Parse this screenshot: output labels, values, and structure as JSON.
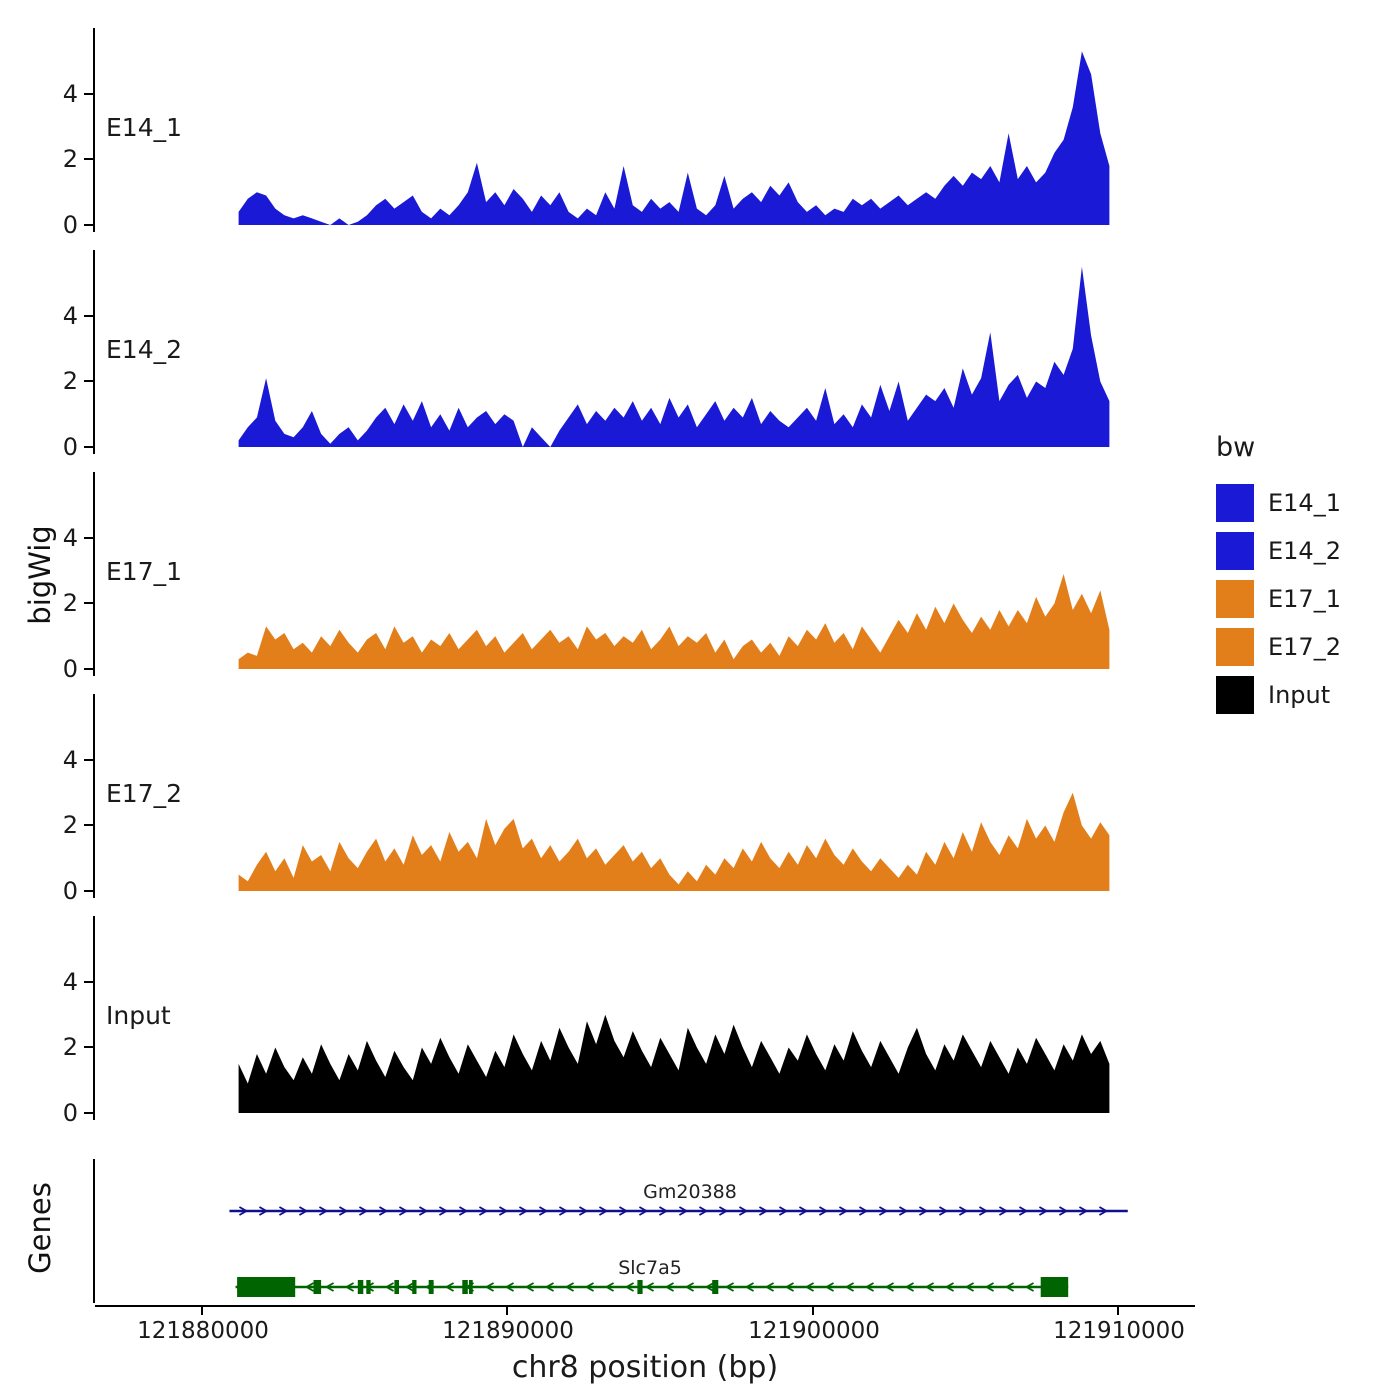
{
  "labels": {
    "y_axis": "bigWig",
    "genes_axis": "Genes",
    "x_axis": "chr8 position (bp)"
  },
  "legend": {
    "title": "bw"
  },
  "chart_data": {
    "type": "area",
    "title": "",
    "xlabel": "chr8 position (bp)",
    "ylabel": "bigWig",
    "x_domain": [
      121876500,
      121912500
    ],
    "x_ticks": [
      121880000,
      121890000,
      121900000,
      121910000
    ],
    "x_tick_labels": [
      "121880000",
      "121890000",
      "121900000",
      "121910000"
    ],
    "y_ticks": [
      0,
      2,
      4
    ],
    "y_tick_labels": [
      "0",
      "2",
      "4"
    ],
    "y_max": 5.8,
    "sample_start": 121881200,
    "sample_step": 300,
    "tracks": [
      {
        "name": "E14_1",
        "color": "#1a1ad6",
        "values": [
          0.4,
          0.8,
          1.0,
          0.9,
          0.5,
          0.3,
          0.2,
          0.3,
          0.2,
          0.1,
          0.0,
          0.2,
          0.0,
          0.1,
          0.3,
          0.6,
          0.8,
          0.5,
          0.7,
          0.9,
          0.4,
          0.2,
          0.5,
          0.3,
          0.6,
          1.0,
          1.9,
          0.7,
          1.0,
          0.6,
          1.1,
          0.8,
          0.4,
          0.9,
          0.6,
          1.0,
          0.4,
          0.2,
          0.5,
          0.3,
          1.0,
          0.5,
          1.8,
          0.6,
          0.4,
          0.8,
          0.5,
          0.7,
          0.4,
          1.6,
          0.5,
          0.3,
          0.6,
          1.5,
          0.5,
          0.8,
          1.0,
          0.7,
          1.2,
          0.9,
          1.3,
          0.7,
          0.4,
          0.6,
          0.3,
          0.5,
          0.4,
          0.8,
          0.6,
          0.8,
          0.5,
          0.7,
          0.9,
          0.6,
          0.8,
          1.0,
          0.8,
          1.2,
          1.5,
          1.2,
          1.6,
          1.4,
          1.8,
          1.3,
          2.8,
          1.4,
          1.8,
          1.3,
          1.6,
          2.2,
          2.6,
          3.6,
          5.3,
          4.6,
          2.8,
          1.8
        ]
      },
      {
        "name": "E14_2",
        "color": "#1a1ad6",
        "values": [
          0.2,
          0.6,
          0.9,
          2.1,
          0.8,
          0.4,
          0.3,
          0.6,
          1.1,
          0.4,
          0.1,
          0.4,
          0.6,
          0.2,
          0.5,
          0.9,
          1.2,
          0.7,
          1.3,
          0.8,
          1.4,
          0.6,
          1.0,
          0.5,
          1.2,
          0.6,
          0.9,
          1.1,
          0.7,
          1.0,
          0.8,
          0.0,
          0.6,
          0.3,
          0.0,
          0.5,
          0.9,
          1.3,
          0.7,
          1.1,
          0.8,
          1.2,
          0.9,
          1.4,
          0.8,
          1.2,
          0.7,
          1.5,
          0.9,
          1.3,
          0.6,
          1.0,
          1.4,
          0.8,
          1.2,
          0.9,
          1.5,
          0.7,
          1.1,
          0.8,
          0.6,
          0.9,
          1.2,
          0.8,
          1.8,
          0.7,
          1.0,
          0.6,
          1.3,
          0.9,
          1.9,
          1.1,
          2.0,
          0.8,
          1.2,
          1.6,
          1.4,
          1.8,
          1.2,
          2.4,
          1.6,
          2.1,
          3.5,
          1.4,
          1.9,
          2.2,
          1.5,
          2.0,
          1.8,
          2.6,
          2.2,
          3.0,
          5.5,
          3.4,
          2.0,
          1.4
        ]
      },
      {
        "name": "E17_1",
        "color": "#e27f1b",
        "values": [
          0.3,
          0.5,
          0.4,
          1.3,
          0.9,
          1.1,
          0.6,
          0.8,
          0.5,
          1.0,
          0.7,
          1.2,
          0.8,
          0.5,
          0.9,
          1.1,
          0.6,
          1.3,
          0.8,
          1.0,
          0.5,
          0.9,
          0.7,
          1.1,
          0.6,
          0.9,
          1.2,
          0.7,
          1.0,
          0.5,
          0.8,
          1.1,
          0.6,
          0.9,
          1.2,
          0.8,
          1.0,
          0.6,
          1.3,
          0.9,
          1.1,
          0.7,
          1.0,
          0.8,
          1.2,
          0.6,
          0.9,
          1.3,
          0.7,
          1.0,
          0.8,
          1.1,
          0.5,
          0.9,
          0.3,
          0.7,
          0.9,
          0.5,
          0.8,
          0.4,
          1.0,
          0.7,
          1.2,
          0.9,
          1.4,
          0.8,
          1.1,
          0.6,
          1.3,
          0.9,
          0.5,
          1.0,
          1.5,
          1.1,
          1.7,
          1.2,
          1.9,
          1.4,
          2.0,
          1.5,
          1.1,
          1.6,
          1.2,
          1.8,
          1.3,
          1.8,
          1.4,
          2.2,
          1.6,
          2.0,
          2.9,
          1.8,
          2.3,
          1.7,
          2.4,
          1.2
        ]
      },
      {
        "name": "E17_2",
        "color": "#e27f1b",
        "values": [
          0.5,
          0.3,
          0.8,
          1.2,
          0.6,
          1.0,
          0.4,
          1.4,
          0.9,
          1.1,
          0.6,
          1.5,
          1.0,
          0.7,
          1.2,
          1.6,
          0.9,
          1.3,
          0.8,
          1.7,
          1.1,
          1.4,
          0.9,
          1.8,
          1.2,
          1.5,
          1.0,
          2.2,
          1.4,
          1.9,
          2.2,
          1.3,
          1.6,
          1.0,
          1.4,
          0.9,
          1.2,
          1.6,
          1.0,
          1.3,
          0.8,
          1.1,
          1.4,
          0.9,
          1.2,
          0.7,
          1.0,
          0.5,
          0.2,
          0.6,
          0.3,
          0.8,
          0.5,
          1.0,
          0.7,
          1.3,
          0.9,
          1.5,
          1.0,
          0.7,
          1.2,
          0.8,
          1.4,
          1.0,
          1.6,
          1.1,
          0.8,
          1.3,
          0.9,
          0.6,
          1.0,
          0.7,
          0.4,
          0.8,
          0.5,
          1.2,
          0.8,
          1.5,
          1.0,
          1.8,
          1.2,
          2.1,
          1.5,
          1.1,
          1.7,
          1.3,
          2.2,
          1.6,
          2.0,
          1.5,
          2.4,
          3.0,
          2.0,
          1.6,
          2.1,
          1.7
        ]
      },
      {
        "name": "Input",
        "color": "#000000",
        "values": [
          1.5,
          0.9,
          1.8,
          1.2,
          2.0,
          1.4,
          1.0,
          1.7,
          1.2,
          2.1,
          1.5,
          1.0,
          1.8,
          1.3,
          2.2,
          1.6,
          1.1,
          1.9,
          1.4,
          1.0,
          2.0,
          1.5,
          2.3,
          1.7,
          1.2,
          2.1,
          1.6,
          1.1,
          1.9,
          1.4,
          2.4,
          1.8,
          1.3,
          2.2,
          1.6,
          2.6,
          2.0,
          1.5,
          2.8,
          2.1,
          3.0,
          2.2,
          1.7,
          2.5,
          1.9,
          1.4,
          2.3,
          1.8,
          1.3,
          2.6,
          2.0,
          1.5,
          2.4,
          1.8,
          2.7,
          2.0,
          1.4,
          2.2,
          1.7,
          1.2,
          2.0,
          1.6,
          2.4,
          1.8,
          1.3,
          2.1,
          1.6,
          2.5,
          1.9,
          1.4,
          2.2,
          1.7,
          1.2,
          2.0,
          2.6,
          1.8,
          1.3,
          2.1,
          1.6,
          2.4,
          1.9,
          1.4,
          2.2,
          1.7,
          1.2,
          2.0,
          1.5,
          2.3,
          1.8,
          1.3,
          2.1,
          1.6,
          2.4,
          1.8,
          2.2,
          1.5
        ]
      }
    ],
    "genes": [
      {
        "name": "Gm20388",
        "color": "#10108c",
        "strand": "+",
        "start": 121880900,
        "end": 121910300,
        "exons": []
      },
      {
        "name": "Slc7a5",
        "color": "#006400",
        "strand": "-",
        "start": 121881100,
        "end": 121908350,
        "exons": [
          [
            121881150,
            121883050
          ],
          [
            121883650,
            121883900
          ],
          [
            121885100,
            121885280
          ],
          [
            121885380,
            121885520
          ],
          [
            121886300,
            121886450
          ],
          [
            121886880,
            121887020
          ],
          [
            121887420,
            121887580
          ],
          [
            121888520,
            121888700
          ],
          [
            121888740,
            121888860
          ],
          [
            121894250,
            121894420
          ],
          [
            121896700,
            121896900
          ],
          [
            121907450,
            121908350
          ]
        ]
      }
    ]
  }
}
